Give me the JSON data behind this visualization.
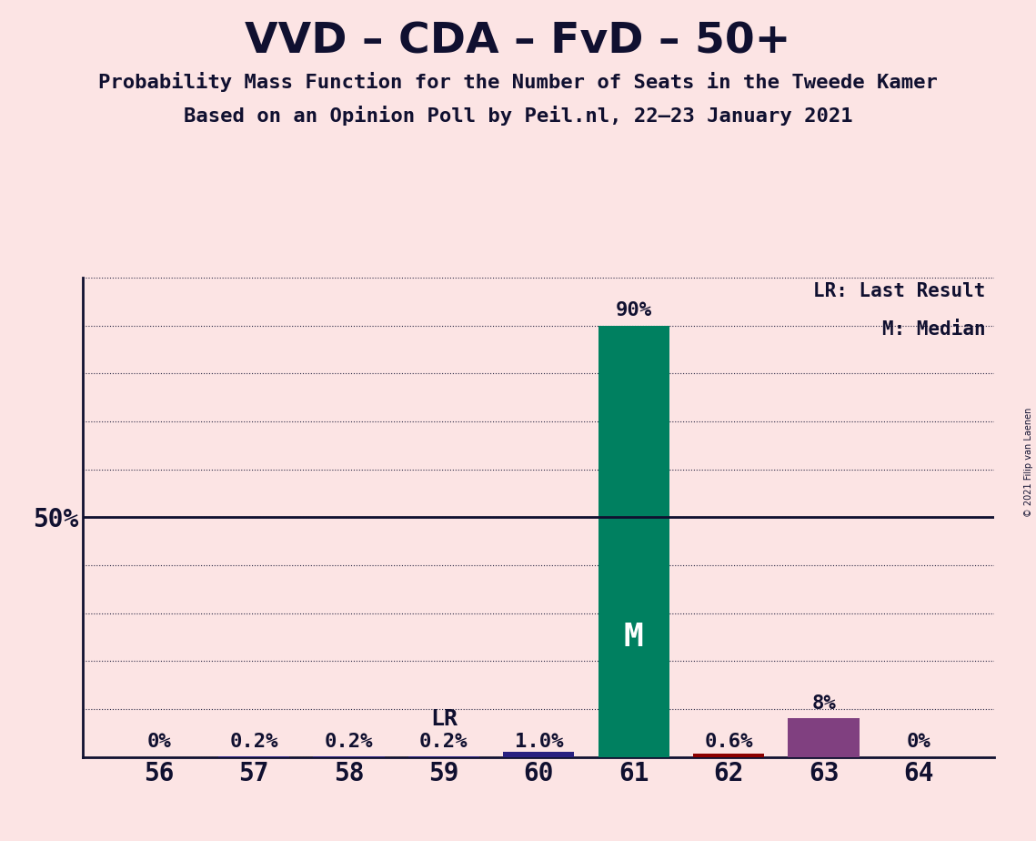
{
  "title": "VVD – CDA – FvD – 50+",
  "subtitle1": "Probability Mass Function for the Number of Seats in the Tweede Kamer",
  "subtitle2": "Based on an Opinion Poll by Peil.nl, 22–23 January 2021",
  "copyright": "© 2021 Filip van Laenen",
  "background_color": "#fce4e4",
  "plot_background_color": "#fce4e4",
  "seats": [
    56,
    57,
    58,
    59,
    60,
    61,
    62,
    63,
    64
  ],
  "probabilities": [
    0.0,
    0.002,
    0.002,
    0.002,
    0.01,
    0.9,
    0.006,
    0.08,
    0.0
  ],
  "bar_colors": [
    "#fce4e4",
    "#282080",
    "#282080",
    "#282080",
    "#282080",
    "#008060",
    "#8b0000",
    "#804080",
    "#fce4e4"
  ],
  "label_texts": [
    "0%",
    "0.2%",
    "0.2%",
    "0.2%",
    "1.0%",
    "90%",
    "0.6%",
    "8%",
    "0%"
  ],
  "median_seat": 61,
  "last_result_seat": 59,
  "ylim": [
    0,
    1.0
  ],
  "yticks": [
    0.0,
    0.1,
    0.2,
    0.3,
    0.4,
    0.5,
    0.6,
    0.7,
    0.8,
    0.9,
    1.0
  ],
  "title_fontsize": 34,
  "subtitle_fontsize": 16,
  "label_color": "#101030",
  "axis_color": "#101030",
  "grid_color": "#101030",
  "legend_text1": "LR: Last Result",
  "legend_text2": "M: Median",
  "bar_width": 0.75
}
